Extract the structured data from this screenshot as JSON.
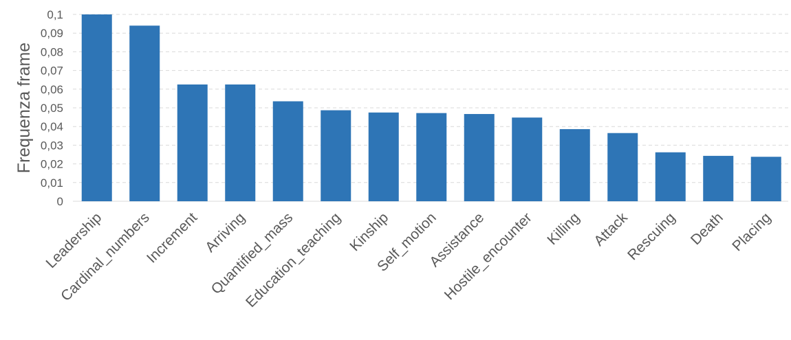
{
  "chart_data": {
    "type": "bar",
    "title": "",
    "xlabel": "",
    "ylabel": "Frequenza frame",
    "ylim": [
      0,
      0.1
    ],
    "yticks": [
      0,
      0.01,
      0.02,
      0.03,
      0.04,
      0.05,
      0.06,
      0.07,
      0.08,
      0.09,
      0.1
    ],
    "ytick_labels": [
      "0",
      "0,01",
      "0,02",
      "0,03",
      "0,04",
      "0,05",
      "0,06",
      "0,07",
      "0,08",
      "0,09",
      "0,1"
    ],
    "grid": true,
    "legend": "none",
    "bar_color": "#2e75b6",
    "categories": [
      "Leadership",
      "Cardinal_numbers",
      "Increment",
      "Arriving",
      "Quantified_mass",
      "Education_teaching",
      "Kinship",
      "Self_motion",
      "Assistance",
      "Hostile_encounter",
      "Killing",
      "Attack",
      "Rescuing",
      "Death",
      "Placing"
    ],
    "values": [
      0.1,
      0.094,
      0.0625,
      0.0625,
      0.0535,
      0.0487,
      0.0475,
      0.0472,
      0.0467,
      0.0448,
      0.0386,
      0.0365,
      0.0262,
      0.0243,
      0.0238
    ]
  }
}
